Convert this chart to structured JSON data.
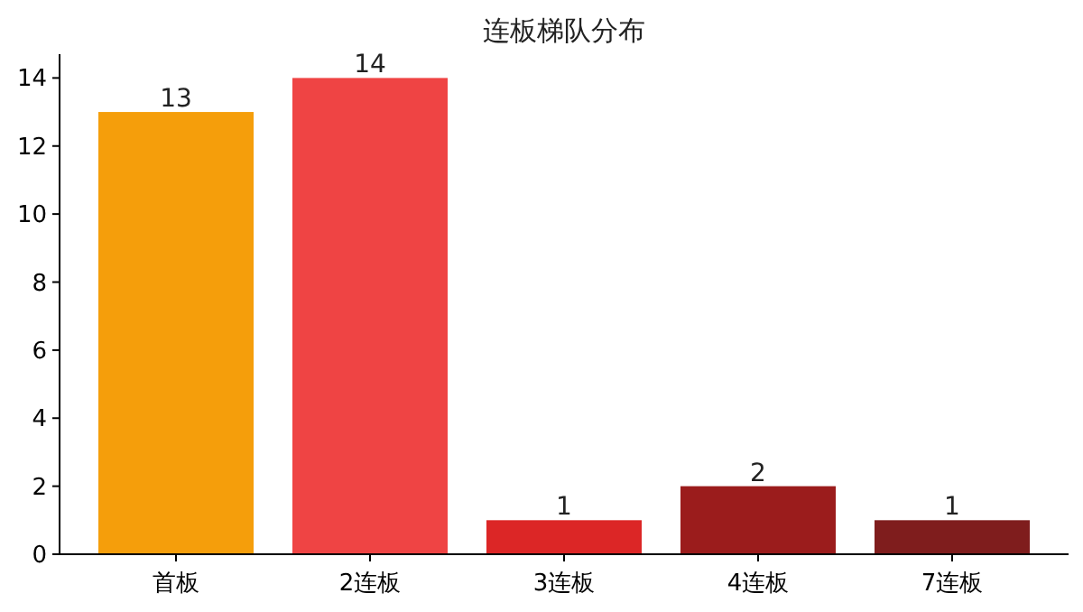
{
  "chart_data": {
    "type": "bar",
    "title": "连板梯队分布",
    "categories": [
      "首板",
      "2连板",
      "3连板",
      "4连板",
      "7连板"
    ],
    "values": [
      13,
      14,
      1,
      2,
      1
    ],
    "colors": [
      "#f59e0b",
      "#ef4444",
      "#dc2626",
      "#9b1c1c",
      "#7f1d1d"
    ],
    "ylim": [
      0,
      14.7
    ],
    "yticks": [
      0,
      2,
      4,
      6,
      8,
      10,
      12,
      14
    ],
    "data_labels": true
  }
}
